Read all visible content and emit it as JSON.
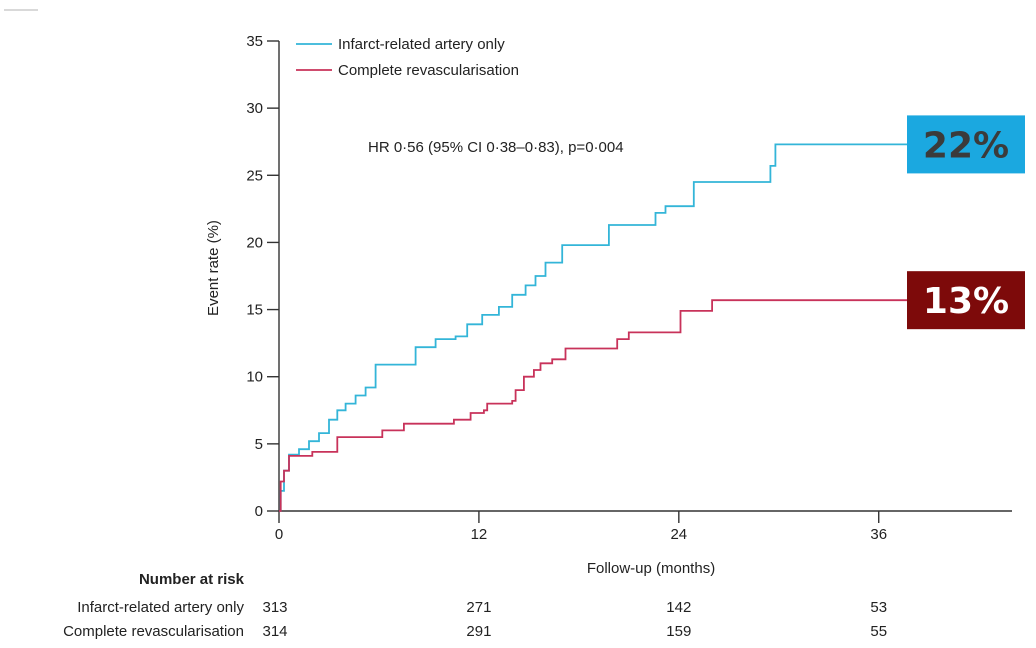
{
  "chart_data": {
    "type": "line",
    "step": true,
    "xlabel": "Follow-up (months)",
    "ylabel": "Event rate (%)",
    "xlim": [
      0,
      44
    ],
    "ylim": [
      0,
      35
    ],
    "x_ticks": [
      0,
      12,
      24,
      36
    ],
    "x_tick_labels": [
      "0",
      "12",
      "24",
      "36"
    ],
    "y_ticks": [
      0,
      5,
      10,
      15,
      20,
      25,
      30,
      35
    ],
    "y_tick_labels": [
      "0",
      "5",
      "10",
      "15",
      "20",
      "25",
      "30",
      "35"
    ],
    "annotation": "HR 0·56 (95% CI 0·38–0·83), p=0·004",
    "legend_position": "top-left",
    "series": [
      {
        "name": "Infarct-related artery only",
        "color": "#33b5d8",
        "points": [
          [
            0,
            0
          ],
          [
            0.1,
            1.5
          ],
          [
            0.3,
            3.0
          ],
          [
            0.6,
            4.2
          ],
          [
            1.2,
            4.6
          ],
          [
            1.8,
            5.2
          ],
          [
            2.4,
            5.8
          ],
          [
            3.0,
            6.8
          ],
          [
            3.5,
            7.5
          ],
          [
            4.0,
            8.0
          ],
          [
            4.6,
            8.6
          ],
          [
            5.2,
            9.2
          ],
          [
            5.8,
            10.9
          ],
          [
            7.5,
            10.9
          ],
          [
            8.2,
            12.2
          ],
          [
            9.4,
            12.8
          ],
          [
            10.6,
            13.0
          ],
          [
            11.3,
            13.9
          ],
          [
            12.2,
            14.6
          ],
          [
            13.2,
            15.2
          ],
          [
            14.0,
            16.1
          ],
          [
            14.8,
            16.8
          ],
          [
            15.4,
            17.5
          ],
          [
            16.0,
            18.5
          ],
          [
            17.0,
            19.8
          ],
          [
            19.4,
            19.8
          ],
          [
            19.8,
            21.3
          ],
          [
            21.8,
            21.3
          ],
          [
            22.6,
            22.2
          ],
          [
            23.2,
            22.7
          ],
          [
            24.9,
            24.5
          ],
          [
            29.5,
            25.7
          ],
          [
            29.8,
            27.3
          ],
          [
            44,
            27.3
          ]
        ]
      },
      {
        "name": "Complete revascularisation",
        "color": "#c8325a",
        "points": [
          [
            0,
            0
          ],
          [
            0.1,
            2.2
          ],
          [
            0.3,
            3.0
          ],
          [
            0.6,
            4.1
          ],
          [
            2.0,
            4.4
          ],
          [
            3.5,
            5.5
          ],
          [
            5.5,
            5.5
          ],
          [
            6.2,
            6.0
          ],
          [
            7.5,
            6.5
          ],
          [
            10.5,
            6.8
          ],
          [
            11.5,
            7.3
          ],
          [
            12.3,
            7.5
          ],
          [
            12.5,
            8.0
          ],
          [
            14.0,
            8.2
          ],
          [
            14.2,
            9.0
          ],
          [
            14.7,
            10.0
          ],
          [
            15.3,
            10.5
          ],
          [
            15.7,
            11.0
          ],
          [
            16.4,
            11.3
          ],
          [
            17.2,
            12.1
          ],
          [
            20.3,
            12.8
          ],
          [
            21.0,
            13.3
          ],
          [
            23.5,
            13.3
          ],
          [
            24.1,
            14.9
          ],
          [
            26.0,
            15.7
          ],
          [
            44,
            15.7
          ]
        ]
      }
    ],
    "badges": [
      {
        "text": "22%",
        "bg": "#1ba8e0",
        "fg": "#3b3b3b",
        "at_value": 27.3
      },
      {
        "text": "13%",
        "bg": "#7d0a0a",
        "fg": "#ffffff",
        "at_value": 15.7
      }
    ],
    "risk_table": {
      "title": "Number at risk",
      "rows": [
        {
          "label": "Infarct-related artery only",
          "values": [
            "313",
            "271",
            "142",
            "53"
          ]
        },
        {
          "label": "Complete revascularisation",
          "values": [
            "314",
            "291",
            "159",
            "55"
          ]
        }
      ]
    }
  }
}
